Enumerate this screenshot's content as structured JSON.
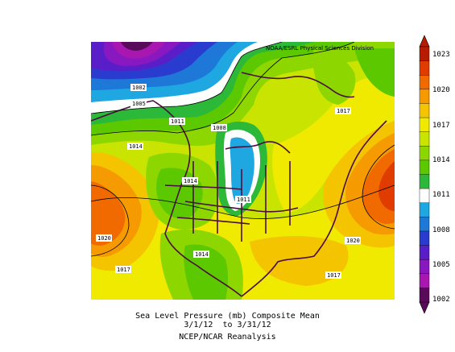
{
  "credit": "NOAA/ESRL Physical Sciences Division",
  "caption": {
    "line1": "Sea Level Pressure (mb) Composite Mean",
    "line2": "3/1/12  to 3/31/12",
    "line3": "NCEP/NCAR Reanalysis"
  },
  "colorbar": {
    "ticks": [
      "1023",
      "1020",
      "1017",
      "1014",
      "1011",
      "1008",
      "1005",
      "1002"
    ],
    "colors": [
      "#b81c00",
      "#e03c00",
      "#f06a00",
      "#f59a00",
      "#f5c400",
      "#f0ea00",
      "#c8e400",
      "#8ed600",
      "#5cc800",
      "#2cb838",
      "#ffffff",
      "#1ea7e0",
      "#1e78d8",
      "#2a3cd0",
      "#5a1ec8",
      "#8a18c0",
      "#a818b0",
      "#5a0a5a"
    ]
  },
  "contour_labels": [
    {
      "text": "1002",
      "name": "label-1002"
    },
    {
      "text": "1005",
      "name": "label-1005-nw"
    },
    {
      "text": "1011",
      "name": "label-1011-nw"
    },
    {
      "text": "1008",
      "name": "label-1008"
    },
    {
      "text": "1014",
      "name": "label-1014-w"
    },
    {
      "text": "1014",
      "name": "label-1014-rockies"
    },
    {
      "text": "1011",
      "name": "label-1011-plains"
    },
    {
      "text": "1020",
      "name": "label-1020-pacific"
    },
    {
      "text": "1017",
      "name": "label-1017-sw"
    },
    {
      "text": "1014",
      "name": "label-1014-mexico"
    },
    {
      "text": "1017",
      "name": "label-1017-labrador"
    },
    {
      "text": "1020",
      "name": "label-1020-atlantic"
    },
    {
      "text": "1017",
      "name": "label-1017-caribbean"
    }
  ]
}
